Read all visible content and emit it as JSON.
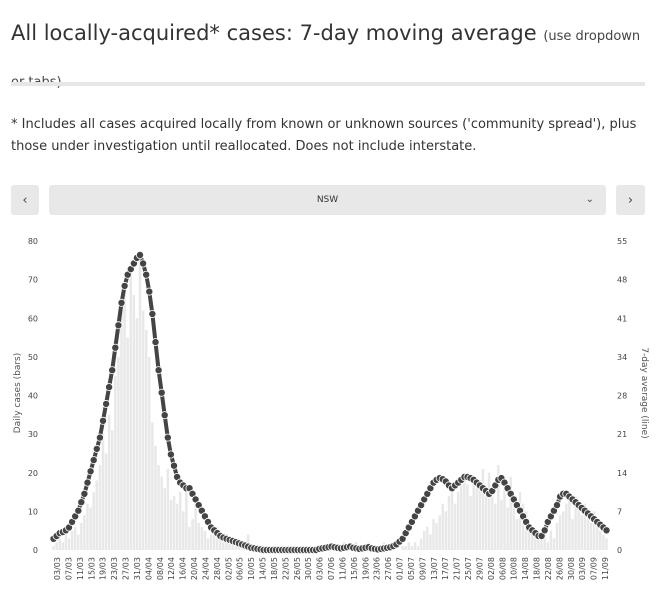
{
  "header": {
    "title": "All locally-acquired* cases: 7-day moving average",
    "subtitle": "(use dropdown or tabs)"
  },
  "note": "* Includes all cases acquired locally from known or unknown sources ('community spread'), plus those under investigation until reallocated. Does not include interstate.",
  "controls": {
    "prev_label": "‹",
    "next_label": "›",
    "selected_state": "NSW",
    "chevron": "chevron-down-icon"
  },
  "colors": {
    "bar": "#e8e8e8",
    "line": "#444444",
    "dot_fill": "#444444",
    "dot_stroke": "#ffffff",
    "grid": "#ffffff"
  },
  "chart_data": {
    "type": "bar",
    "title": "",
    "ylabel": "Daily cases (bars)",
    "y2label": "7-day average (line)",
    "ylim": [
      0,
      80
    ],
    "y2lim": [
      0,
      55
    ],
    "yticks": [
      0,
      10,
      20,
      30,
      40,
      50,
      60,
      70,
      80
    ],
    "y2ticks": [
      "0",
      "7",
      "14",
      "21",
      "28",
      "34",
      "41",
      "48",
      "55"
    ],
    "x_tick_labels": [
      "03/03",
      "07/03",
      "11/03",
      "15/03",
      "19/03",
      "23/03",
      "27/03",
      "31/03",
      "04/04",
      "08/04",
      "12/04",
      "16/04",
      "20/04",
      "24/04",
      "28/04",
      "02/05",
      "06/05",
      "10/05",
      "14/05",
      "18/05",
      "22/05",
      "26/05",
      "30/05",
      "03/06",
      "07/06",
      "11/06",
      "15/06",
      "19/06",
      "23/06",
      "27/06",
      "01/07",
      "05/07",
      "09/07",
      "13/07",
      "17/07",
      "21/07",
      "25/07",
      "29/07",
      "02/08",
      "06/08",
      "10/08",
      "14/08",
      "18/08",
      "22/08",
      "26/08",
      "30/08",
      "03/09",
      "07/09",
      "11/09"
    ],
    "series": [
      {
        "name": "Daily cases (bars)",
        "axis": "left",
        "values": [
          1,
          2,
          3,
          2,
          4,
          3,
          5,
          6,
          4,
          7,
          9,
          12,
          11,
          15,
          18,
          22,
          30,
          25,
          35,
          31,
          45,
          50,
          63,
          68,
          55,
          72,
          66,
          60,
          75,
          62,
          57,
          50,
          33,
          27,
          22,
          19,
          16,
          21,
          13,
          14,
          12,
          15,
          10,
          17,
          6,
          8,
          12,
          7,
          6,
          5,
          3,
          4,
          5,
          6,
          3,
          2,
          4,
          3,
          2,
          1,
          3,
          2,
          1,
          4,
          1,
          0,
          0,
          1,
          0,
          0,
          1,
          0,
          0,
          0,
          1,
          0,
          0,
          0,
          0,
          0,
          0,
          0,
          1,
          0,
          0,
          0,
          0,
          1,
          0,
          1,
          1,
          0,
          1,
          0,
          2,
          1,
          1,
          0,
          2,
          1,
          0,
          1,
          2,
          1,
          0,
          1,
          1,
          2,
          1,
          0,
          1,
          0,
          0,
          1,
          1,
          2,
          1,
          2,
          1,
          3,
          5,
          6,
          4,
          8,
          7,
          9,
          12,
          10,
          14,
          17,
          12,
          15,
          18,
          20,
          17,
          14,
          19,
          16,
          18,
          21,
          15,
          20,
          17,
          12,
          22,
          13,
          16,
          11,
          19,
          14,
          8,
          15,
          12,
          10,
          7,
          6,
          5,
          4,
          3,
          6,
          2,
          5,
          3,
          7,
          9,
          10,
          12,
          13,
          8,
          14,
          11,
          9,
          12,
          8,
          7,
          10,
          6,
          5,
          4,
          3
        ]
      },
      {
        "name": "7-day average (line)",
        "axis": "right",
        "values": [
          2,
          2.5,
          3,
          3.2,
          3.5,
          4,
          5,
          6,
          7,
          8.5,
          10,
          12,
          14,
          16,
          18,
          20,
          23,
          26,
          29,
          32,
          36,
          40,
          44,
          47,
          49,
          50,
          51,
          52,
          52.5,
          51,
          49,
          46,
          42,
          37,
          32,
          28,
          24,
          20,
          17,
          15,
          13,
          12,
          11.5,
          11,
          11,
          10,
          9,
          8,
          7,
          6,
          5,
          4,
          3.5,
          3,
          2.5,
          2.2,
          2,
          1.8,
          1.6,
          1.4,
          1.2,
          1,
          0.8,
          0.6,
          0.4,
          0.3,
          0.2,
          0.1,
          0,
          0,
          0,
          0,
          0,
          0,
          0,
          0,
          0,
          0,
          0,
          0,
          0,
          0,
          0,
          0,
          0,
          0,
          0.2,
          0.3,
          0.4,
          0.5,
          0.6,
          0.5,
          0.4,
          0.3,
          0.4,
          0.5,
          0.6,
          0.4,
          0.3,
          0.2,
          0.3,
          0.4,
          0.5,
          0.3,
          0.2,
          0.1,
          0.2,
          0.3,
          0.4,
          0.5,
          0.7,
          1,
          1.5,
          2,
          3,
          4,
          5,
          6,
          7,
          8,
          9,
          10,
          11,
          12,
          12.5,
          12.8,
          12.6,
          12.2,
          11.5,
          11,
          11.5,
          12,
          12.5,
          13,
          13,
          12.8,
          12.5,
          12,
          11.5,
          11,
          10.5,
          10,
          10.5,
          11.5,
          12.5,
          12.8,
          12,
          11,
          10,
          9,
          8,
          7,
          6,
          5,
          4,
          3.5,
          3,
          2.5,
          2.5,
          3.5,
          5,
          6,
          7,
          8,
          9.5,
          10,
          10,
          9.5,
          9,
          8.5,
          8,
          7.5,
          7,
          6.5,
          6,
          5.5,
          5,
          4.5,
          4,
          3.5
        ]
      }
    ]
  }
}
